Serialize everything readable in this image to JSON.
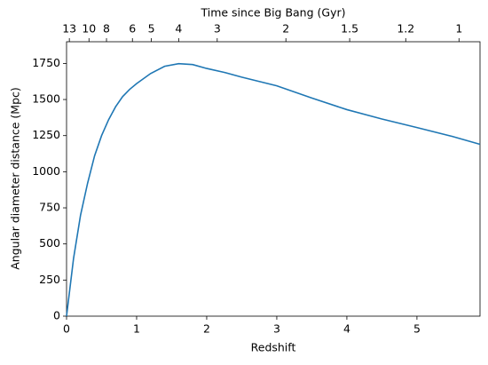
{
  "chart_data": {
    "type": "line",
    "xlabel": "Redshift",
    "ylabel": "Angular diameter distance (Mpc)",
    "x2label": "Time since Big Bang (Gyr)",
    "x": [
      0,
      0.1,
      0.2,
      0.3,
      0.4,
      0.5,
      0.6,
      0.7,
      0.8,
      0.9,
      1.0,
      1.2,
      1.4,
      1.6,
      1.8,
      2.0,
      2.25,
      2.5,
      2.75,
      3.0,
      3.5,
      4.0,
      4.5,
      5.0,
      5.5,
      5.9
    ],
    "series": [
      {
        "color": "#1f77b4",
        "values": [
          0,
          400,
          700,
          920,
          1110,
          1250,
          1360,
          1450,
          1520,
          1570,
          1610,
          1680,
          1730,
          1748,
          1742,
          1715,
          1688,
          1655,
          1625,
          1595,
          1510,
          1430,
          1365,
          1306,
          1245,
          1190
        ]
      }
    ],
    "xlim": [
      0,
      5.9
    ],
    "ylim": [
      0,
      1900
    ],
    "xticks": [
      0,
      1,
      2,
      3,
      4,
      5
    ],
    "yticks": [
      0,
      250,
      500,
      750,
      1000,
      1250,
      1500,
      1750
    ],
    "x2ticks": [
      {
        "value": 0.04,
        "label": "13"
      },
      {
        "value": 0.32,
        "label": "10"
      },
      {
        "value": 0.57,
        "label": "8"
      },
      {
        "value": 0.94,
        "label": "6"
      },
      {
        "value": 1.21,
        "label": "5"
      },
      {
        "value": 1.6,
        "label": "4"
      },
      {
        "value": 2.15,
        "label": "3"
      },
      {
        "value": 3.13,
        "label": "2"
      },
      {
        "value": 4.04,
        "label": "1.5"
      },
      {
        "value": 4.84,
        "label": "1.2"
      },
      {
        "value": 5.6,
        "label": "1"
      }
    ],
    "grid": false
  }
}
